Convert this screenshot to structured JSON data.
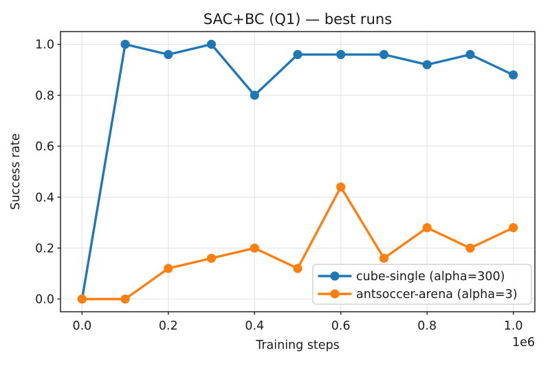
{
  "figure": {
    "background": "#ffffff"
  },
  "chart_data": {
    "type": "line",
    "title": "SAC+BC (Q1) — best runs",
    "xlabel": "Training steps",
    "ylabel": "Success rate",
    "x_offset_label": "1e6",
    "x": [
      0,
      100000,
      200000,
      300000,
      400000,
      500000,
      600000,
      700000,
      800000,
      900000,
      1000000
    ],
    "series": [
      {
        "id": "cube-single",
        "name": "cube-single (alpha=300)",
        "color": "#1f77b4",
        "values": [
          0.0,
          1.0,
          0.96,
          1.0,
          0.8,
          0.96,
          0.96,
          0.96,
          0.92,
          0.96,
          0.88
        ]
      },
      {
        "id": "antsoccer-arena",
        "name": "antsoccer-arena (alpha=3)",
        "color": "#ff7f0e",
        "values": [
          0.0,
          0.0,
          0.12,
          0.16,
          0.2,
          0.12,
          0.44,
          0.16,
          0.28,
          0.2,
          0.28
        ]
      }
    ],
    "xlim": [
      -50000,
      1050000
    ],
    "ylim": [
      -0.05,
      1.05
    ],
    "xticks": {
      "values": [
        0,
        200000,
        400000,
        600000,
        800000,
        1000000
      ],
      "labels": [
        "0.0",
        "0.2",
        "0.4",
        "0.6",
        "0.8",
        "1.0"
      ]
    },
    "yticks": {
      "values": [
        0.0,
        0.2,
        0.4,
        0.6,
        0.8,
        1.0
      ],
      "labels": [
        "0.0",
        "0.2",
        "0.4",
        "0.6",
        "0.8",
        "1.0"
      ]
    },
    "grid": true,
    "legend": {
      "position": "lower right",
      "entries": [
        "cube-single (alpha=300)",
        "antsoccer-arena (alpha=3)"
      ]
    },
    "style": {
      "text_color": "#1a1a1a",
      "spine_color": "#222222",
      "grid_color": "#e5e5e5",
      "legend_border": "#cccccc",
      "legend_bg": "#ffffff"
    }
  }
}
